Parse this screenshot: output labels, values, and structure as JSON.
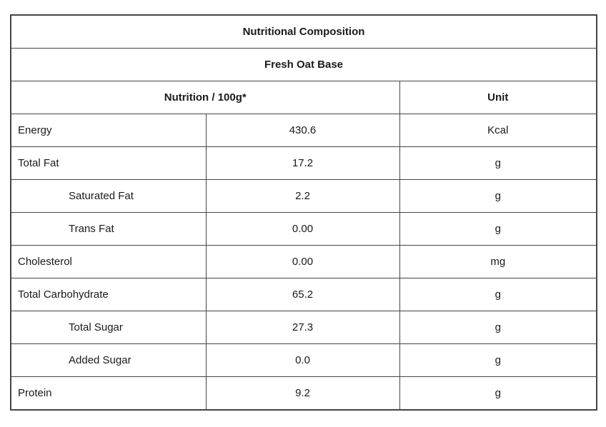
{
  "table": {
    "title": "Nutritional Composition",
    "subtitle": "Fresh Oat Base",
    "columns": {
      "nutrition_header": "Nutrition / 100g*",
      "unit_header": "Unit"
    },
    "rows": [
      {
        "label": "Energy",
        "value": "430.6",
        "unit": "Kcal",
        "indent": false
      },
      {
        "label": "Total Fat",
        "value": "17.2",
        "unit": "g",
        "indent": false
      },
      {
        "label": "Saturated Fat",
        "value": "2.2",
        "unit": "g",
        "indent": true
      },
      {
        "label": "Trans Fat",
        "value": "0.00",
        "unit": "g",
        "indent": true
      },
      {
        "label": "Cholesterol",
        "value": "0.00",
        "unit": "mg",
        "indent": false
      },
      {
        "label": "Total Carbohydrate",
        "value": "65.2",
        "unit": "g",
        "indent": false
      },
      {
        "label": "Total Sugar",
        "value": "27.3",
        "unit": "g",
        "indent": true
      },
      {
        "label": "Added Sugar",
        "value": "0.0",
        "unit": "g",
        "indent": true
      },
      {
        "label": "Protein",
        "value": "9.2",
        "unit": "g",
        "indent": false
      }
    ],
    "colors": {
      "border": "#454545",
      "text": "#1a1a1a",
      "background": "#ffffff"
    }
  }
}
